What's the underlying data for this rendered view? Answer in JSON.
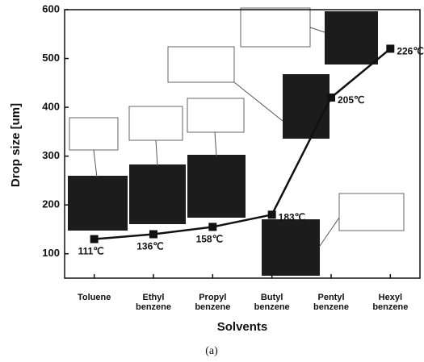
{
  "chart_data": {
    "type": "line",
    "x_label": "Solvents",
    "y_label": "Drop size [um]",
    "caption": "(a)",
    "categories": [
      "Toluene",
      "Ethyl benzene",
      "Propyl benzene",
      "Butyl benzene",
      "Pentyl benzene",
      "Hexyl benzene"
    ],
    "values": [
      130,
      140,
      155,
      180,
      420,
      520
    ],
    "color": "#111111",
    "point_labels": [
      "111℃",
      "136℃",
      "158℃",
      "183℃",
      "205℃",
      "226℃"
    ],
    "ylim": [
      50,
      600
    ],
    "yticks": [
      100,
      200,
      300,
      400,
      500,
      600
    ]
  }
}
